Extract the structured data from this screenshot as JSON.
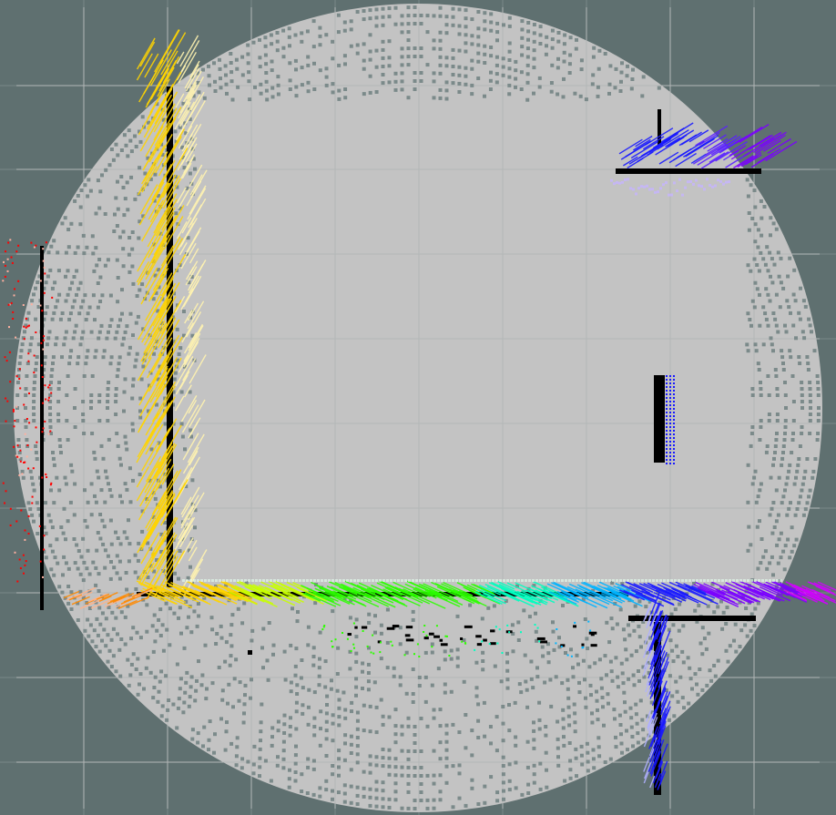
{
  "viewer": {
    "background_color": "#5f7070",
    "grid_color": "#8c9a9a",
    "map_free_color": "#c3c3c3",
    "map_unknown_color": "#7b8a8a",
    "obstacle_color": "#000000"
  },
  "scan": {
    "colormap": [
      "#ff0000",
      "#ff8a00",
      "#ffd400",
      "#fff3b0",
      "#c8ff00",
      "#2cff00",
      "#00ffc0",
      "#00b4ff",
      "#1a1aff",
      "#7a00ff",
      "#d000ff"
    ]
  },
  "layers": [
    {
      "name": "grid",
      "label": ""
    },
    {
      "name": "occupancy-map",
      "label": ""
    },
    {
      "name": "laser-scan",
      "label": ""
    }
  ]
}
